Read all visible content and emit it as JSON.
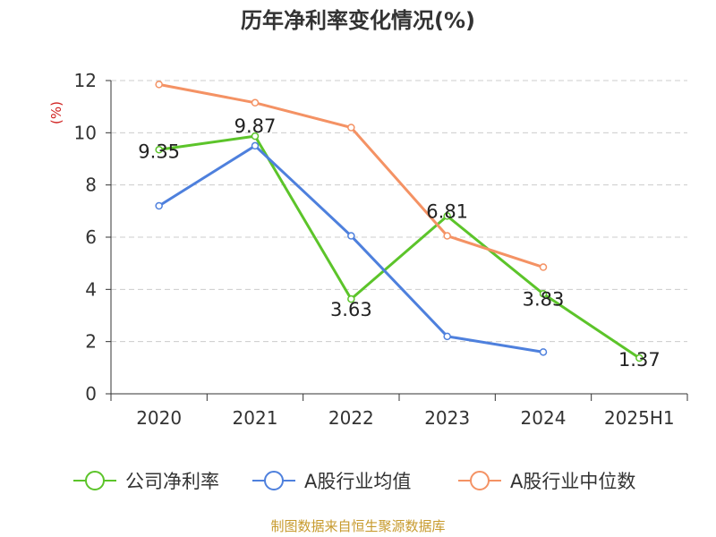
{
  "colors": {
    "company": "#5cc42a",
    "industry_avg": "#4e80dd",
    "industry_median": "#f49264",
    "axis": "#333333",
    "grid": "#cccccc",
    "unit": "#d0201f",
    "source": "#c79a2d"
  },
  "source_note": "制图数据来自恒生聚源数据库",
  "chart_data": {
    "type": "line",
    "title": "历年净利率变化情况(%)",
    "ylabel": "(%)",
    "xlabel": "",
    "ylim": [
      0,
      12
    ],
    "y_ticks": [
      0,
      2,
      4,
      6,
      8,
      10,
      12
    ],
    "y_tick_labels": [
      "0",
      "2",
      "4",
      "6",
      "8",
      "10",
      "12"
    ],
    "grid": true,
    "legend_position": "bottom",
    "categories": [
      "2020",
      "2021",
      "2022",
      "2023",
      "2024",
      "2025H1"
    ],
    "series": [
      {
        "name": "公司净利率",
        "color_key": "company",
        "values": [
          9.35,
          9.87,
          3.63,
          6.81,
          3.83,
          1.37
        ],
        "labels": [
          "9.35",
          "9.87",
          "3.63",
          "6.81",
          "3.83",
          "1.37"
        ]
      },
      {
        "name": "A股行业均值",
        "color_key": "industry_avg",
        "values": [
          7.2,
          9.5,
          6.05,
          2.2,
          1.6,
          null
        ]
      },
      {
        "name": "A股行业中位数",
        "color_key": "industry_median",
        "values": [
          11.85,
          11.15,
          10.2,
          6.05,
          4.85,
          null
        ]
      }
    ]
  }
}
